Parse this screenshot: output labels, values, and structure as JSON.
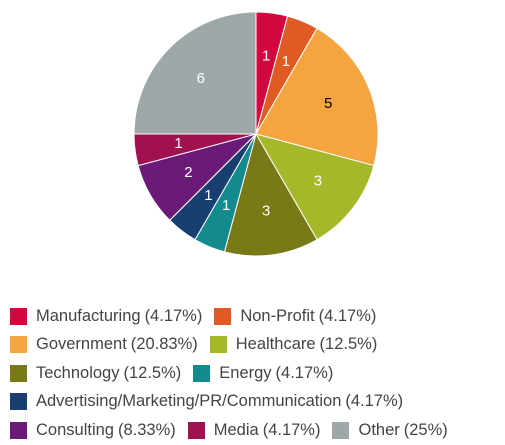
{
  "chart_data": {
    "type": "pie",
    "categories": [
      "Manufacturing",
      "Non-Profit",
      "Government",
      "Healthcare",
      "Technology",
      "Energy",
      "Advertising/Marketing/PR/Communication",
      "Consulting",
      "Media",
      "Other"
    ],
    "values": [
      1,
      1,
      5,
      3,
      3,
      1,
      1,
      2,
      1,
      6
    ],
    "percent_labels": [
      "(4.17%)",
      "(4.17%)",
      "(20.83%)",
      "(12.5%)",
      "(12.5%)",
      "(4.17%)",
      "(4.17%)",
      "(8.33%)",
      "(4.17%)",
      "(25%)"
    ],
    "colors": [
      "#d1083f",
      "#e05a24",
      "#f5a540",
      "#a5b82a",
      "#797a17",
      "#138a8e",
      "#183f6f",
      "#6b1a78",
      "#a0124f",
      "#9ea8a9"
    ],
    "label_colors": [
      "#ffffff",
      "#ffffff",
      "#000000",
      "#ffffff",
      "#ffffff",
      "#ffffff",
      "#ffffff",
      "#ffffff",
      "#ffffff",
      "#ffffff"
    ]
  }
}
